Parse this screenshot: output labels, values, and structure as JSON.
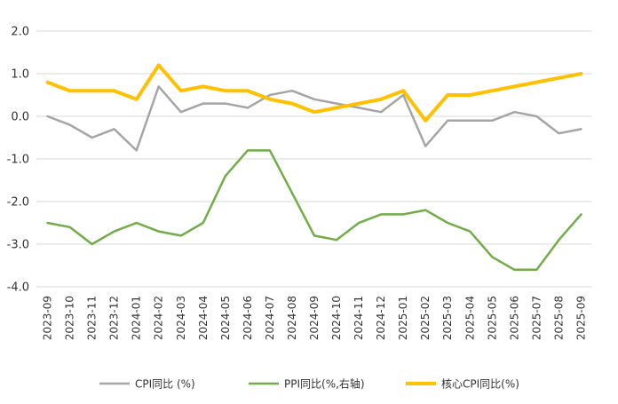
{
  "chart_data": {
    "type": "line",
    "title": "",
    "xlabel": "",
    "ylabel": "",
    "ylim": [
      -4.0,
      2.0
    ],
    "yticks": [
      "2.0",
      "1.0",
      "0.0",
      "-1.0",
      "-2.0",
      "-3.0",
      "-4.0"
    ],
    "grid": true,
    "legend_position": "bottom",
    "categories": [
      "2023-09",
      "2023-10",
      "2023-11",
      "2023-12",
      "2024-01",
      "2024-02",
      "2024-03",
      "2024-04",
      "2024-05",
      "2024-06",
      "2024-07",
      "2024-08",
      "2024-09",
      "2024-10",
      "2024-11",
      "2024-12",
      "2025-01",
      "2025-02",
      "2025-03",
      "2025-04",
      "2025-05",
      "2025-06",
      "2025-07",
      "2025-08",
      "2025-09"
    ],
    "series": [
      {
        "name": "CPI同比 (%)",
        "color": "#a5a5a5",
        "width": 2.5,
        "values": [
          0.0,
          -0.2,
          -0.5,
          -0.3,
          -0.8,
          0.7,
          0.1,
          0.3,
          0.3,
          0.2,
          0.5,
          0.6,
          0.4,
          0.3,
          0.2,
          0.1,
          0.5,
          -0.7,
          -0.1,
          -0.1,
          -0.1,
          0.1,
          0.0,
          -0.4,
          -0.3
        ]
      },
      {
        "name": "PPI同比(%,右轴)",
        "color": "#70ad47",
        "width": 2.5,
        "values": [
          -2.5,
          -2.6,
          -3.0,
          -2.7,
          -2.5,
          -2.7,
          -2.8,
          -2.5,
          -1.4,
          -0.8,
          -0.8,
          -1.8,
          -2.8,
          -2.9,
          -2.5,
          -2.3,
          -2.3,
          -2.2,
          -2.5,
          -2.7,
          -3.3,
          -3.6,
          -3.6,
          -2.9,
          -2.3
        ]
      },
      {
        "name": "核心CPI同比(%)",
        "color": "#ffc000",
        "width": 4,
        "values": [
          0.8,
          0.6,
          0.6,
          0.6,
          0.4,
          1.2,
          0.6,
          0.7,
          0.6,
          0.6,
          0.4,
          0.3,
          0.1,
          0.2,
          0.3,
          0.4,
          0.6,
          -0.1,
          0.5,
          0.5,
          0.6,
          0.7,
          0.8,
          0.9,
          1.0
        ]
      }
    ]
  }
}
